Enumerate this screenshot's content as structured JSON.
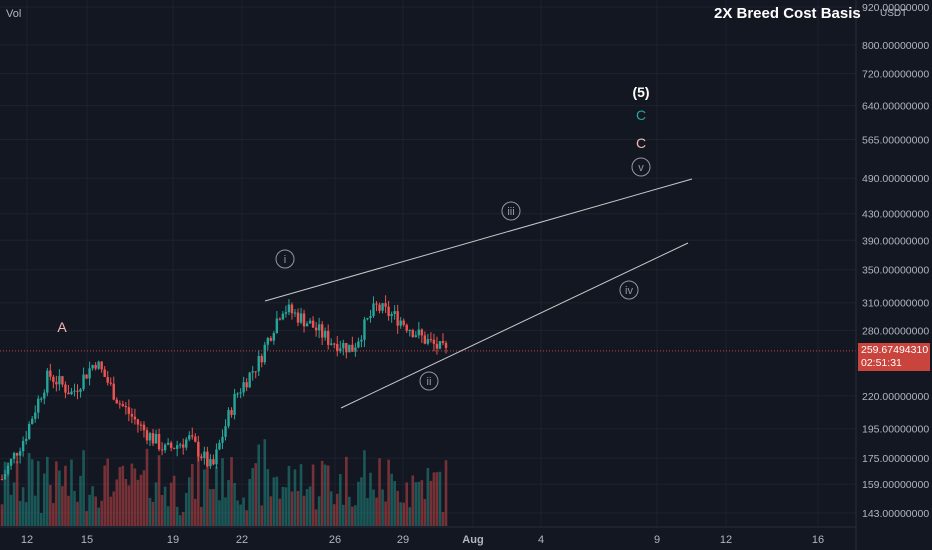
{
  "header": {
    "vol_label": "Vol",
    "indicator_title": "2X Breed Cost Basis"
  },
  "price_axis": {
    "currency": "USDT",
    "ticks": [
      "920.00000000",
      "800.00000000",
      "720.00000000",
      "640.00000000",
      "565.00000000",
      "490.00000000",
      "430.00000000",
      "390.00000000",
      "350.00000000",
      "310.00000000",
      "280.00000000",
      "220.00000000",
      "195.00000000",
      "175.00000000",
      "159.00000000",
      "143.00000000"
    ],
    "tick_values": [
      920,
      800,
      720,
      640,
      565,
      490,
      430,
      390,
      350,
      310,
      280,
      220,
      195,
      175,
      159,
      143
    ],
    "current_price": "259.67494310",
    "countdown": "02:51:31"
  },
  "time_axis": {
    "labels": [
      "12",
      "15",
      "19",
      "22",
      "26",
      "29",
      "Aug",
      "4",
      "9",
      "12",
      "16"
    ]
  },
  "wave_labels": {
    "A": "A",
    "five": "(5)",
    "C_green": "C",
    "C_pink": "C",
    "i": "i",
    "ii": "ii",
    "iii": "iii",
    "iv": "iv",
    "v": "v"
  },
  "colors": {
    "background": "#131722",
    "up": "#26a69a",
    "down": "#ef5350",
    "up_vol": "#26a69a",
    "down_vol": "#ef5350",
    "wedge_line": "#c8c8c8",
    "wave_label": "#9598a1",
    "label_A": "#f6b6b4",
    "label_C_green": "#26a69a",
    "label_C_pink": "#f6b6b4",
    "label_five": "#ffffff",
    "price_line": "#c9443c"
  },
  "chart_data": {
    "type": "candlestick",
    "scale": "log",
    "y_unit": "USDT",
    "current_price": 259.6749431,
    "price_path": [
      {
        "date": "Jul 11",
        "price": 162
      },
      {
        "date": "Jul 12",
        "price": 190
      },
      {
        "date": "Jul 13",
        "price": 238
      },
      {
        "date": "Jul 14",
        "price": 222
      },
      {
        "date": "Jul 15",
        "price": 250
      },
      {
        "date": "Jul 16",
        "price": 215
      },
      {
        "date": "Jul 17",
        "price": 195
      },
      {
        "date": "Jul 18",
        "price": 180
      },
      {
        "date": "Jul 19",
        "price": 188
      },
      {
        "date": "Jul 20",
        "price": 168
      },
      {
        "date": "Jul 21",
        "price": 220
      },
      {
        "date": "Jul 22",
        "price": 250
      },
      {
        "date": "Jul 23",
        "price": 305
      },
      {
        "date": "Jul 24",
        "price": 290
      },
      {
        "date": "Jul 25",
        "price": 270
      },
      {
        "date": "Jul 26",
        "price": 262
      },
      {
        "date": "Jul 27",
        "price": 305
      },
      {
        "date": "Jul 28",
        "price": 292
      },
      {
        "date": "Jul 29",
        "price": 272
      },
      {
        "date": "Jul 30",
        "price": 258
      }
    ]
  }
}
